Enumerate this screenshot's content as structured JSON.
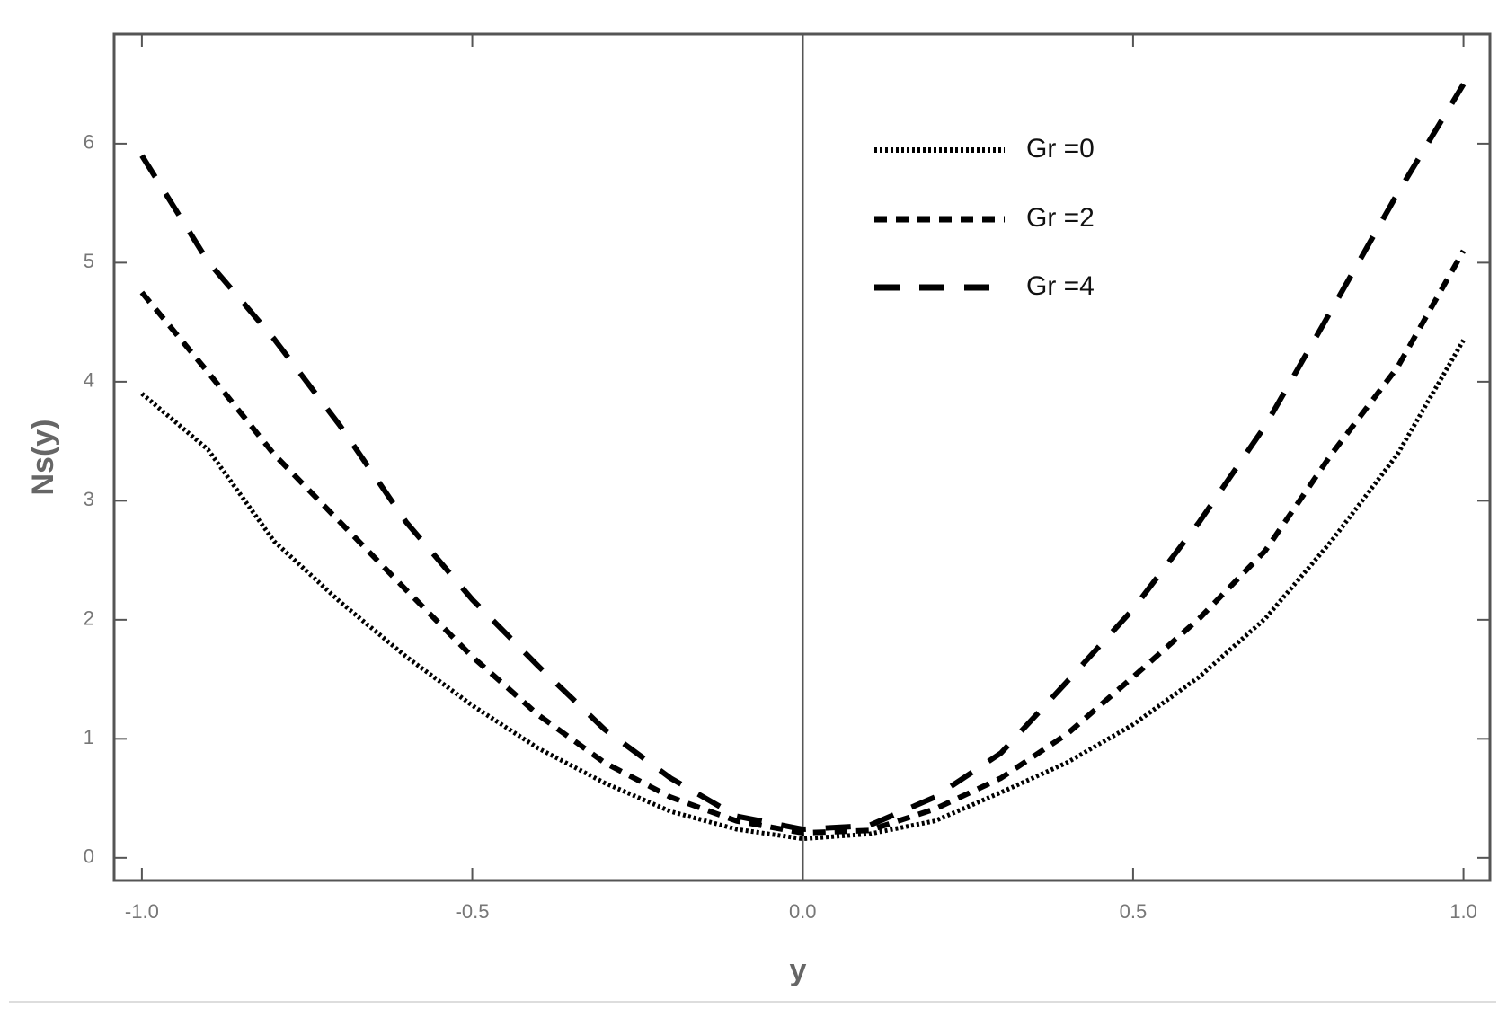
{
  "chart_data": {
    "type": "line",
    "x_label": "y",
    "y_label": "Ns(y)",
    "x": [
      -1,
      -0.9,
      -0.8,
      -0.7,
      -0.6,
      -0.5,
      -0.4,
      -0.3,
      -0.2,
      -0.1,
      0,
      0.1,
      0.2,
      0.3,
      0.4,
      0.5,
      0.6,
      0.7,
      0.8,
      0.9,
      1
    ],
    "series": [
      {
        "name": "Gr =0",
        "color": "#000000",
        "dash": "dotted",
        "values": [
          3.9,
          3.43,
          2.66,
          2.15,
          1.69,
          1.28,
          0.92,
          0.63,
          0.39,
          0.24,
          0.16,
          0.2,
          0.31,
          0.55,
          0.8,
          1.12,
          1.52,
          2.01,
          2.66,
          3.39,
          4.35
        ]
      },
      {
        "name": "Gr =2",
        "color": "#000000",
        "dash": "dashed",
        "values": [
          4.75,
          4.08,
          3.39,
          2.82,
          2.25,
          1.69,
          1.2,
          0.8,
          0.51,
          0.31,
          0.21,
          0.23,
          0.41,
          0.67,
          1.04,
          1.52,
          2.01,
          2.58,
          3.39,
          4.12,
          5.1
        ]
      },
      {
        "name": "Gr =4",
        "color": "#000000",
        "dash": "long-dashed",
        "values": [
          5.9,
          5.01,
          4.36,
          3.63,
          2.82,
          2.17,
          1.61,
          1.08,
          0.67,
          0.35,
          0.24,
          0.27,
          0.51,
          0.88,
          1.48,
          2.09,
          2.82,
          3.63,
          4.6,
          5.58,
          6.5
        ]
      }
    ],
    "xlim": [
      -1.042,
      1.04
    ],
    "ylim": [
      -0.19,
      6.92
    ],
    "xticks": [
      {
        "value": -1,
        "label": "-1.0"
      },
      {
        "value": -0.5,
        "label": "-0.5"
      },
      {
        "value": 0,
        "label": "0.0"
      },
      {
        "value": 0.5,
        "label": "0.5"
      },
      {
        "value": 1,
        "label": "1.0"
      }
    ],
    "yticks": [
      0,
      1,
      2,
      3,
      4,
      5,
      6
    ],
    "grid": false,
    "legend": "upper right"
  }
}
